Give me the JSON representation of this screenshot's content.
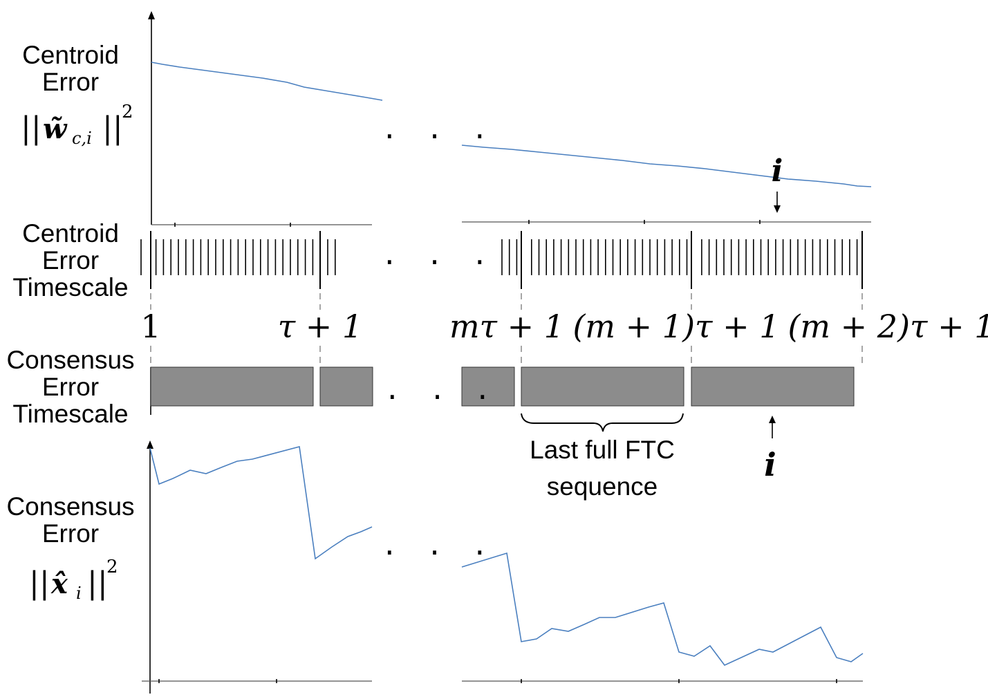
{
  "labels": {
    "centroid_error_line1": "Centroid",
    "centroid_error_line2": "Error",
    "centroid_error_formula_base": "||",
    "centroid_error_formula_w": "w̃",
    "centroid_error_formula_sub": "c,i",
    "centroid_error_formula_close": "||",
    "centroid_error_formula_exp": "2",
    "centroid_timescale_line1": "Centroid",
    "centroid_timescale_line2": "Error",
    "centroid_timescale_line3": "Timescale",
    "consensus_timescale_line1": "Consensus",
    "consensus_timescale_line2": "Error",
    "consensus_timescale_line3": "Timescale",
    "consensus_error_line1": "Consensus",
    "consensus_error_line2": "Error",
    "consensus_error_formula_base": "||",
    "consensus_error_formula_x": "x̂",
    "consensus_error_formula_sub": "i",
    "consensus_error_formula_close": "||",
    "consensus_error_formula_exp": "2"
  },
  "timeline_labels": {
    "t1": "1",
    "t2": "τ + 1",
    "t3": "mτ + 1",
    "t4": "(m + 1)τ + 1",
    "t5": "(m + 2)τ + 1"
  },
  "markers": {
    "i_top": "i",
    "i_bottom": "i"
  },
  "brace_label": {
    "line1": "Last full FTC",
    "line2": "sequence"
  },
  "ellipsis": ". . ."
}
